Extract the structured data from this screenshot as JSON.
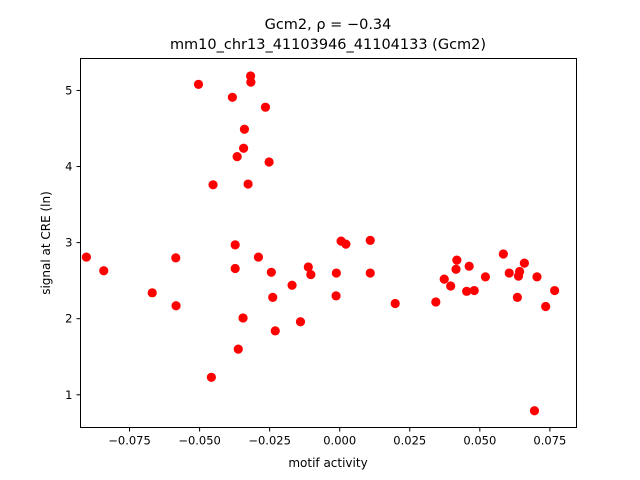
{
  "chart_data": {
    "type": "scatter",
    "title_lines": [
      "Gcm2, ρ = −0.34",
      "mm10_chr13_41103946_41104133 (Gcm2)"
    ],
    "xlabel": "motif activity",
    "ylabel": "signal at CRE (ln)",
    "xlim": [
      -0.0925,
      0.0845
    ],
    "ylim": [
      0.57,
      5.42
    ],
    "xticks": [
      -0.075,
      -0.05,
      -0.025,
      0.0,
      0.025,
      0.05,
      0.075
    ],
    "xtick_labels": [
      "−0.075",
      "−0.050",
      "−0.025",
      "0.000",
      "0.025",
      "0.050",
      "0.075"
    ],
    "yticks": [
      1,
      2,
      3,
      4,
      5
    ],
    "ytick_labels": [
      "1",
      "2",
      "3",
      "4",
      "5"
    ],
    "grid": false,
    "marker_color": "#ff0000",
    "points": [
      {
        "x": -0.0904,
        "y": 2.81
      },
      {
        "x": -0.0842,
        "y": 2.63
      },
      {
        "x": -0.0669,
        "y": 2.34
      },
      {
        "x": -0.0585,
        "y": 2.8
      },
      {
        "x": -0.0584,
        "y": 2.17
      },
      {
        "x": -0.0504,
        "y": 5.08
      },
      {
        "x": -0.0458,
        "y": 1.23
      },
      {
        "x": -0.0452,
        "y": 3.76
      },
      {
        "x": -0.0383,
        "y": 4.91
      },
      {
        "x": -0.0373,
        "y": 2.97
      },
      {
        "x": -0.0373,
        "y": 2.66
      },
      {
        "x": -0.0366,
        "y": 4.13
      },
      {
        "x": -0.0362,
        "y": 1.6
      },
      {
        "x": -0.0345,
        "y": 2.01
      },
      {
        "x": -0.0343,
        "y": 4.24
      },
      {
        "x": -0.034,
        "y": 4.49
      },
      {
        "x": -0.0327,
        "y": 3.77
      },
      {
        "x": -0.0318,
        "y": 5.19
      },
      {
        "x": -0.0317,
        "y": 5.11
      },
      {
        "x": -0.029,
        "y": 2.81
      },
      {
        "x": -0.0265,
        "y": 4.78
      },
      {
        "x": -0.0252,
        "y": 4.06
      },
      {
        "x": -0.0244,
        "y": 2.61
      },
      {
        "x": -0.0239,
        "y": 2.28
      },
      {
        "x": -0.023,
        "y": 1.84
      },
      {
        "x": -0.017,
        "y": 2.44
      },
      {
        "x": -0.014,
        "y": 1.96
      },
      {
        "x": -0.0112,
        "y": 2.68
      },
      {
        "x": -0.0103,
        "y": 2.58
      },
      {
        "x": -0.0013,
        "y": 2.3
      },
      {
        "x": -0.0012,
        "y": 2.6
      },
      {
        "x": 0.0005,
        "y": 3.02
      },
      {
        "x": 0.0022,
        "y": 2.98
      },
      {
        "x": 0.0109,
        "y": 3.03
      },
      {
        "x": 0.0109,
        "y": 2.6
      },
      {
        "x": 0.0198,
        "y": 2.2
      },
      {
        "x": 0.0343,
        "y": 2.22
      },
      {
        "x": 0.0373,
        "y": 2.52
      },
      {
        "x": 0.0396,
        "y": 2.43
      },
      {
        "x": 0.0415,
        "y": 2.65
      },
      {
        "x": 0.0418,
        "y": 2.77
      },
      {
        "x": 0.0453,
        "y": 2.36
      },
      {
        "x": 0.0462,
        "y": 2.69
      },
      {
        "x": 0.048,
        "y": 2.37
      },
      {
        "x": 0.052,
        "y": 2.55
      },
      {
        "x": 0.0584,
        "y": 2.85
      },
      {
        "x": 0.0605,
        "y": 2.6
      },
      {
        "x": 0.0634,
        "y": 2.28
      },
      {
        "x": 0.0638,
        "y": 2.56
      },
      {
        "x": 0.0642,
        "y": 2.62
      },
      {
        "x": 0.0659,
        "y": 2.73
      },
      {
        "x": 0.0695,
        "y": 0.79
      },
      {
        "x": 0.0704,
        "y": 2.55
      },
      {
        "x": 0.0735,
        "y": 2.16
      },
      {
        "x": 0.0767,
        "y": 2.37
      }
    ]
  }
}
